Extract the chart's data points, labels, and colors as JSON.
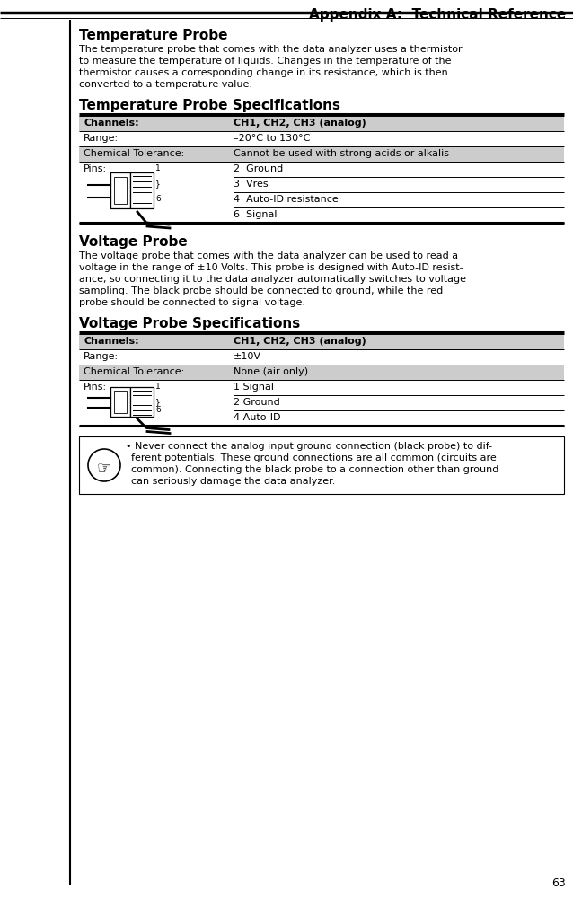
{
  "page_title": "Appendix A:  Technical Reference",
  "page_number": "63",
  "section1_title": "Temperature Probe",
  "section1_body": [
    "The temperature probe that comes with the data analyzer uses a thermistor",
    "to measure the temperature of liquids. Changes in the temperature of the",
    "thermistor causes a corresponding change in its resistance, which is then",
    "converted to a temperature value."
  ],
  "table1_title": "Temperature Probe Specifications",
  "section2_title": "Voltage Probe",
  "section2_body": [
    "The voltage probe that comes with the data analyzer can be used to read a",
    "voltage in the range of ±10 Volts. This probe is designed with Auto-ID resist-",
    "ance, so connecting it to the data analyzer automatically switches to voltage",
    "sampling. The black probe should be connected to ground, while the red",
    "probe should be connected to signal voltage."
  ],
  "table2_title": "Voltage Probe Specifications",
  "warning_lines": [
    "Never connect the analog input ground connection (black probe) to dif-",
    "ferent potentials. These ground connections are all common (circuits are",
    "common). Connecting the black probe to a connection other than ground",
    "can seriously damage the data analyzer."
  ],
  "bg_color": "#ffffff",
  "shaded_color": "#cccccc",
  "text_color": "#000000"
}
